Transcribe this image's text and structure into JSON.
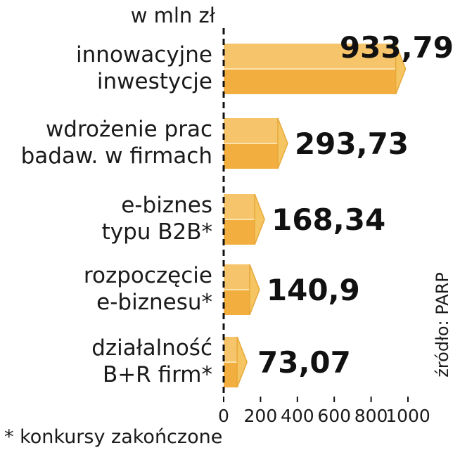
{
  "chart_data": {
    "type": "bar",
    "orientation": "horizontal",
    "unit_label": "w mln zł",
    "categories": [
      [
        "innowacyjne",
        "inwestycje"
      ],
      [
        "wdrożenie prac",
        "badaw. w firmach"
      ],
      [
        "e-biznes",
        "typu B2B*"
      ],
      [
        "rozpoczęcie",
        "e-biznesu*"
      ],
      [
        "działalność",
        "B+R firm*"
      ]
    ],
    "values": [
      933.79,
      293.73,
      168.34,
      140.9,
      73.07
    ],
    "value_labels": [
      "933,79",
      "293,73",
      "168,34",
      "140,9",
      "73,07"
    ],
    "xlim": [
      0,
      1000
    ],
    "ticks": [
      0,
      200,
      400,
      600,
      800,
      1000
    ],
    "tick_labels": [
      "0",
      "200",
      "400",
      "600",
      "800",
      "1000"
    ],
    "source": "źródło: PARP",
    "footnote": "* konkursy zakończone",
    "colors": {
      "bar_front": "#F2AE3E",
      "bar_front_light": "#F6C46A",
      "bar_top": "#F8D27F",
      "bar_side": "#F4C560",
      "axis": "#111111"
    }
  }
}
